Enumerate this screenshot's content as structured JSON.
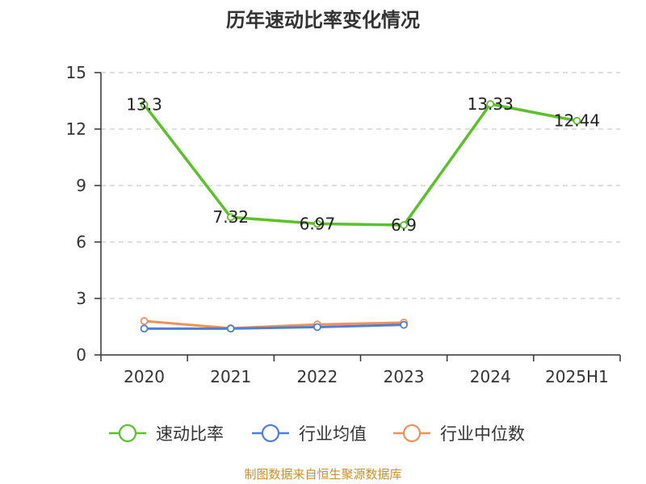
{
  "chart_data": {
    "type": "line",
    "title": "历年速动比率变化情况",
    "categories": [
      "2020",
      "2021",
      "2022",
      "2023",
      "2024",
      "2025H1"
    ],
    "ylim": [
      0,
      15
    ],
    "yticks": [
      0,
      3,
      6,
      9,
      12,
      15
    ],
    "grid": true,
    "legend_position": "bottom",
    "series": [
      {
        "name": "速动比率",
        "color": "#5cc02a",
        "values": [
          13.3,
          7.32,
          6.97,
          6.9,
          13.33,
          12.44
        ],
        "labels": [
          "13.3",
          "7.32",
          "6.97",
          "6.9",
          "13.33",
          "12.44"
        ]
      },
      {
        "name": "行业均值",
        "color": "#4e7fd8",
        "values": [
          1.4,
          1.4,
          1.48,
          1.6,
          null,
          null
        ]
      },
      {
        "name": "行业中位数",
        "color": "#f0915a",
        "values": [
          1.8,
          1.42,
          1.62,
          1.72,
          null,
          null
        ]
      }
    ]
  },
  "footer": {
    "source": "制图数据来自恒生聚源数据库"
  }
}
